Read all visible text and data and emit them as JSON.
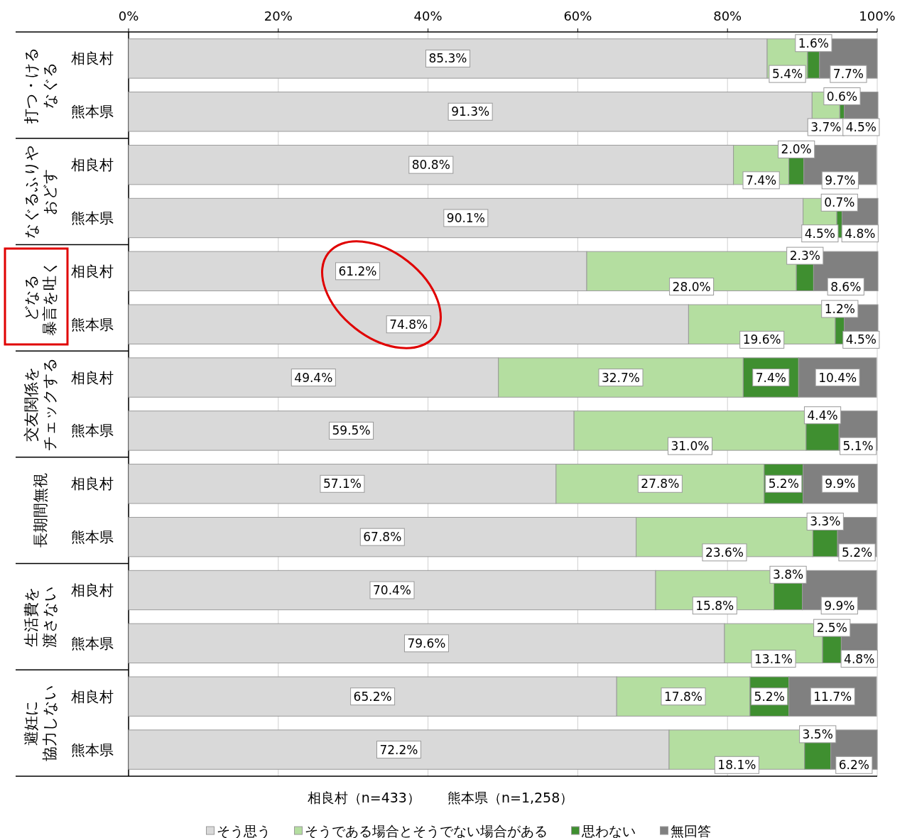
{
  "chart_data": {
    "type": "bar",
    "orientation": "horizontal",
    "stacked": true,
    "categories": [
      "相良村",
      "熊本県",
      "相良村",
      "熊本県",
      "相良村",
      "熊本県",
      "相良村",
      "熊本県",
      "相良村",
      "熊本県",
      "相良村",
      "熊本県",
      "相良村",
      "熊本県"
    ],
    "series": [
      {
        "name": "そう思う",
        "color": "#d9d9d9",
        "values": [
          85.3,
          91.3,
          80.8,
          90.1,
          61.2,
          74.8,
          49.4,
          59.5,
          57.1,
          67.8,
          70.4,
          79.6,
          65.2,
          72.2
        ],
        "value_labels": [
          "85.3%",
          "91.3%",
          "80.8%",
          "90.1%",
          "61.2%",
          "74.8%",
          "49.4%",
          "59.5%",
          "57.1%",
          "67.8%",
          "70.4%",
          "79.6%",
          "65.2%",
          "72.2%"
        ]
      },
      {
        "name": "そうである場合とそうでない場合がある",
        "color": "#b4dea0",
        "values": [
          5.4,
          3.7,
          7.4,
          4.5,
          28.0,
          19.6,
          32.7,
          31.0,
          27.8,
          23.6,
          15.8,
          13.1,
          17.8,
          18.1
        ],
        "value_labels": [
          "5.4%",
          "3.7%",
          "7.4%",
          "4.5%",
          "28.0%",
          "19.6%",
          "32.7%",
          "31.0%",
          "27.8%",
          "23.6%",
          "15.8%",
          "13.1%",
          "17.8%",
          "18.1%"
        ]
      },
      {
        "name": "思わない",
        "color": "#3f8f30",
        "values": [
          1.6,
          0.6,
          2.0,
          0.7,
          2.3,
          1.2,
          7.4,
          4.4,
          5.2,
          3.3,
          3.8,
          2.5,
          5.2,
          3.5
        ],
        "value_labels": [
          "1.6%",
          "0.6%",
          "2.0%",
          "0.7%",
          "2.3%",
          "1.2%",
          "7.4%",
          "4.4%",
          "5.2%",
          "3.3%",
          "3.8%",
          "2.5%",
          "5.2%",
          "3.5%"
        ]
      },
      {
        "name": "無回答",
        "color": "#808080",
        "values": [
          7.7,
          4.5,
          9.7,
          4.8,
          8.6,
          4.5,
          10.4,
          5.1,
          9.9,
          5.2,
          9.9,
          4.8,
          11.7,
          6.2
        ],
        "value_labels": [
          "7.7%",
          "4.5%",
          "9.7%",
          "4.8%",
          "8.6%",
          "4.5%",
          "10.4%",
          "5.1%",
          "9.9%",
          "5.2%",
          "9.9%",
          "4.8%",
          "11.7%",
          "6.2%"
        ]
      }
    ],
    "xlim": [
      0,
      100
    ],
    "xticks": [
      {
        "value": 0,
        "label": "0%"
      },
      {
        "value": 20,
        "label": "20%"
      },
      {
        "value": 40,
        "label": "40%"
      },
      {
        "value": 60,
        "label": "60%"
      },
      {
        "value": 80,
        "label": "80%"
      },
      {
        "value": 100,
        "label": "100%"
      }
    ],
    "grid": "x",
    "legend": "bottom",
    "annotations": [
      "打つ・ける",
      "なぐる",
      "なぐるふりや",
      "おどす",
      "どなる",
      "暴言を吐く",
      "交友関係を",
      "チェックする",
      "長期間無視",
      "生活費を",
      "渡さない",
      "避妊に",
      "協力しない",
      "相良村（n=433）　　熊本県（n=1,258）"
    ]
  }
}
